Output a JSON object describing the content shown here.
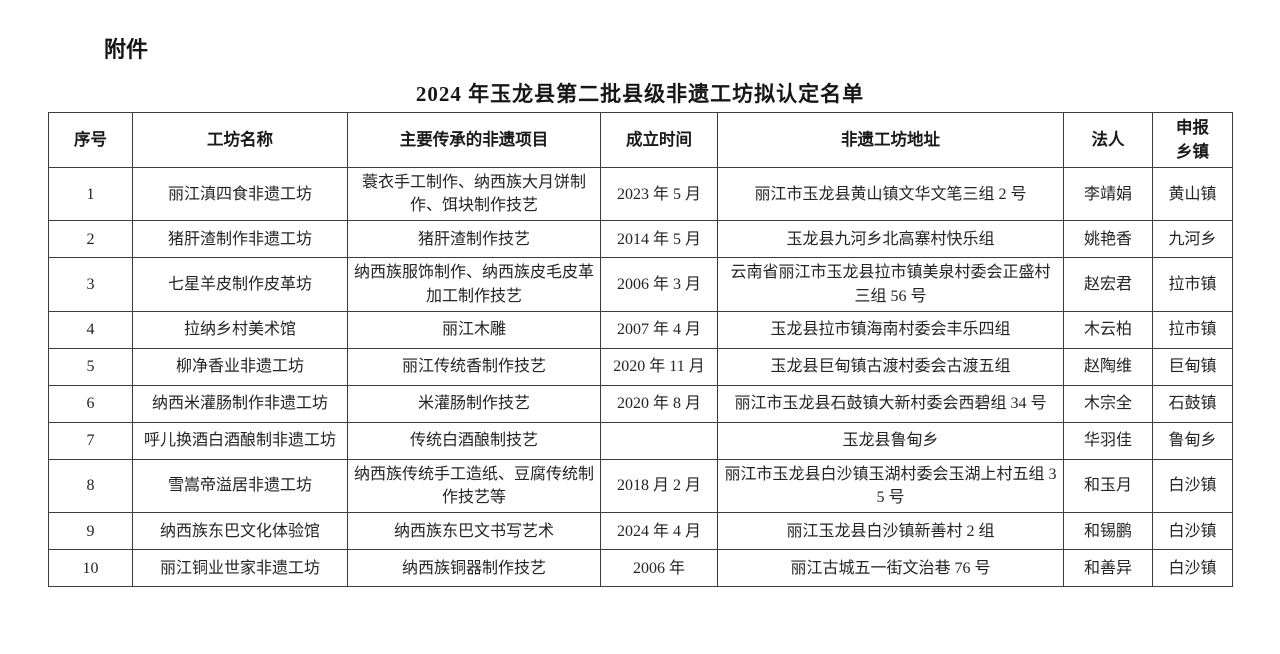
{
  "attachment_label": "附件",
  "title": "2024 年玉龙县第二批县级非遗工坊拟认定名单",
  "table": {
    "headers": [
      "序号",
      "工坊名称",
      "主要传承的非遗项目",
      "成立时间",
      "非遗工坊地址",
      "法人",
      "申报\n乡镇"
    ],
    "rows": [
      [
        "1",
        "丽江滇四食非遗工坊",
        "蓑衣手工制作、纳西族大月饼制作、饵块制作技艺",
        "2023 年 5 月",
        "丽江市玉龙县黄山镇文华文笔三组 2 号",
        "李靖娟",
        "黄山镇"
      ],
      [
        "2",
        "猪肝渣制作非遗工坊",
        "猪肝渣制作技艺",
        "2014 年 5 月",
        "玉龙县九河乡北高寨村快乐组",
        "姚艳香",
        "九河乡"
      ],
      [
        "3",
        "七星羊皮制作皮革坊",
        "纳西族服饰制作、纳西族皮毛皮革加工制作技艺",
        "2006 年 3 月",
        "云南省丽江市玉龙县拉市镇美泉村委会正盛村三组 56 号",
        "赵宏君",
        "拉市镇"
      ],
      [
        "4",
        "拉纳乡村美术馆",
        "丽江木雕",
        "2007 年 4 月",
        "玉龙县拉市镇海南村委会丰乐四组",
        "木云柏",
        "拉市镇"
      ],
      [
        "5",
        "柳净香业非遗工坊",
        "丽江传统香制作技艺",
        "2020 年 11 月",
        "玉龙县巨甸镇古渡村委会古渡五组",
        "赵陶维",
        "巨甸镇"
      ],
      [
        "6",
        "纳西米灌肠制作非遗工坊",
        "米灌肠制作技艺",
        "2020 年 8 月",
        "丽江市玉龙县石鼓镇大新村委会西碧组 34 号",
        "木宗全",
        "石鼓镇"
      ],
      [
        "7",
        "呼儿换酒白酒酿制非遗工坊",
        "传统白酒酿制技艺",
        "",
        "玉龙县鲁甸乡",
        "华羽佳",
        "鲁甸乡"
      ],
      [
        "8",
        "雪嵩帝溢居非遗工坊",
        "纳西族传统手工造纸、豆腐传统制作技艺等",
        "2018 月 2 月",
        "丽江市玉龙县白沙镇玉湖村委会玉湖上村五组 35 号",
        "和玉月",
        "白沙镇"
      ],
      [
        "9",
        "纳西族东巴文化体验馆",
        "纳西族东巴文书写艺术",
        "2024 年 4 月",
        "丽江玉龙县白沙镇新善村 2 组",
        "和锡鹏",
        "白沙镇"
      ],
      [
        "10",
        "丽江铜业世家非遗工坊",
        "纳西族铜器制作技艺",
        "2006 年",
        "丽江古城五一街文治巷 76 号",
        "和善异",
        "白沙镇"
      ]
    ]
  }
}
